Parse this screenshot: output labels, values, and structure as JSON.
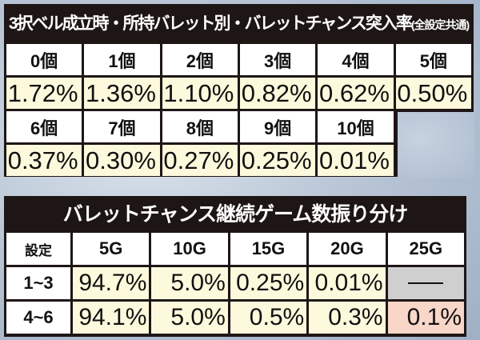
{
  "table1": {
    "title": "3択ベル成立時・所持バレット別・バレットチャンス突入率",
    "title_note": "(全設定共通)",
    "row1": [
      {
        "label": "0個",
        "value": "1.72%"
      },
      {
        "label": "1個",
        "value": "1.36%"
      },
      {
        "label": "2個",
        "value": "1.10%"
      },
      {
        "label": "3個",
        "value": "0.82%"
      },
      {
        "label": "4個",
        "value": "0.62%"
      },
      {
        "label": "5個",
        "value": "0.50%"
      }
    ],
    "row2": [
      {
        "label": "6個",
        "value": "0.37%"
      },
      {
        "label": "7個",
        "value": "0.30%"
      },
      {
        "label": "8個",
        "value": "0.27%"
      },
      {
        "label": "9個",
        "value": "0.25%"
      },
      {
        "label": "10個",
        "value": "0.01%"
      }
    ]
  },
  "table2": {
    "title": "バレットチャンス継続ゲーム数振り分け",
    "headers": [
      "設定",
      "5G",
      "10G",
      "15G",
      "20G",
      "25G"
    ],
    "rows": [
      {
        "setting": "1~3",
        "values": [
          "94.7%",
          "5.0%",
          "0.25%",
          "0.01%",
          "—"
        ]
      },
      {
        "setting": "4~6",
        "values": [
          "94.1%",
          "5.0%",
          "0.5%",
          "0.3%",
          "0.1%"
        ]
      }
    ]
  }
}
